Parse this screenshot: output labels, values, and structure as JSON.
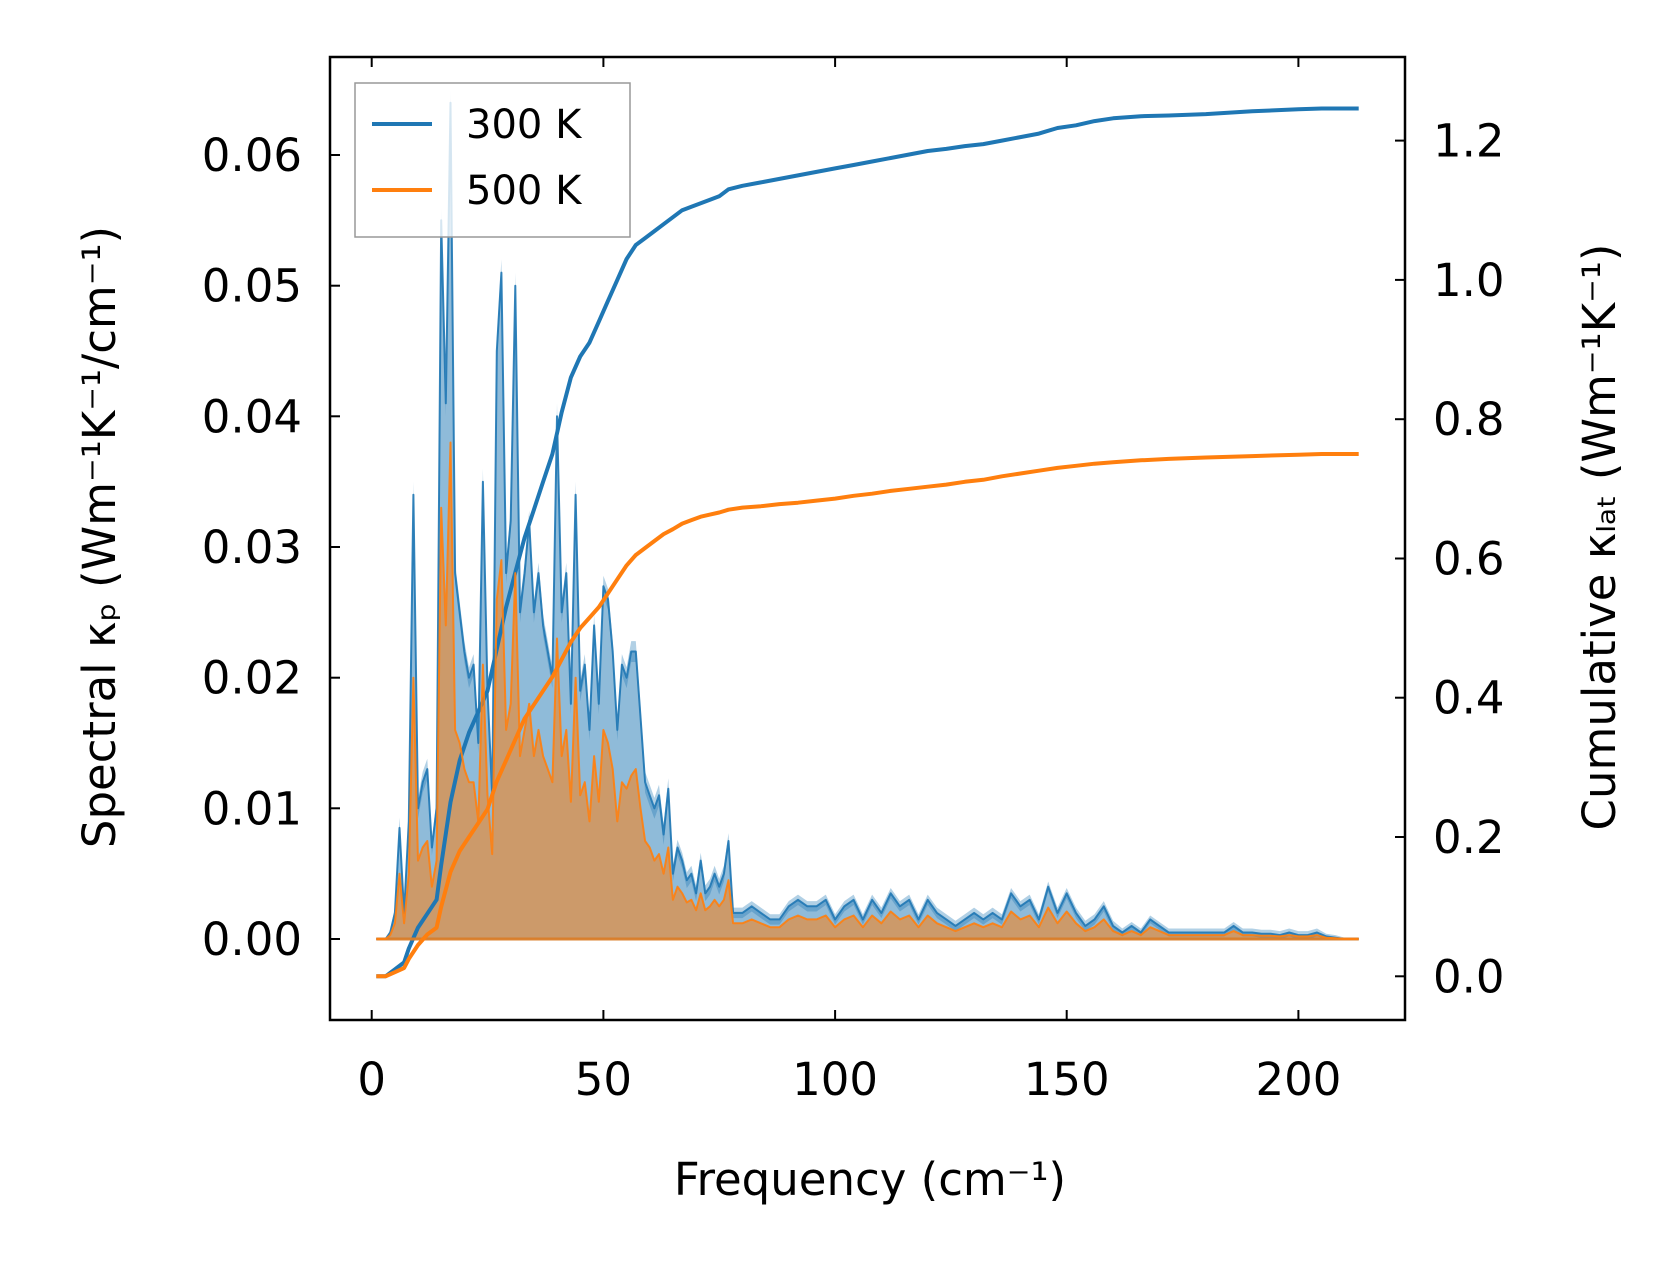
{
  "chart_data": {
    "type": "line",
    "xlabel": "Frequency (cm⁻¹)",
    "ylabel_left": "Spectral κₚ (Wm⁻¹K⁻¹/cm⁻¹)",
    "ylabel_right": "Cumulative κₗₐₜ (Wm⁻¹K⁻¹)",
    "xlim": [
      -9,
      223
    ],
    "ylim_left": [
      -0.0062,
      0.0675
    ],
    "ylim_right": [
      -0.0627,
      1.32
    ],
    "xticks": [
      0,
      50,
      100,
      150,
      200
    ],
    "yticks_left": [
      0.0,
      0.01,
      0.02,
      0.03,
      0.04,
      0.05,
      0.06
    ],
    "yticks_right": [
      0.0,
      0.2,
      0.4,
      0.6,
      0.8,
      1.0,
      1.2
    ],
    "xtick_labels": [
      "0",
      "50",
      "100",
      "150",
      "200"
    ],
    "ytick_labels_left": [
      "0.00",
      "0.01",
      "0.02",
      "0.03",
      "0.04",
      "0.05",
      "0.06"
    ],
    "ytick_labels_right": [
      "0.0",
      "0.2",
      "0.4",
      "0.6",
      "0.8",
      "1.0",
      "1.2"
    ],
    "legend": {
      "position": "top-left",
      "entries": [
        "300 K",
        "500 K"
      ]
    },
    "series": [
      {
        "name": "300 K",
        "color": "#1f77b4",
        "fill_color": "#1f77b4",
        "spectral": {
          "x": [
            1,
            3,
            4,
            5,
            6,
            7,
            8,
            9,
            10,
            11,
            12,
            13,
            14,
            15,
            16,
            17,
            18,
            19,
            20,
            21,
            22,
            23,
            24,
            25,
            26,
            27,
            28,
            29,
            30,
            31,
            32,
            33,
            34,
            35,
            36,
            37,
            38,
            39,
            40,
            41,
            42,
            43,
            44,
            45,
            46,
            47,
            48,
            49,
            50,
            51,
            52,
            53,
            54,
            55,
            56,
            57,
            58,
            59,
            60,
            61,
            62,
            63,
            64,
            65,
            66,
            67,
            68,
            69,
            70,
            71,
            72,
            73,
            74,
            75,
            76,
            77,
            78,
            80,
            82,
            84,
            86,
            88,
            90,
            92,
            94,
            96,
            98,
            100,
            102,
            104,
            106,
            108,
            110,
            112,
            114,
            116,
            118,
            120,
            122,
            124,
            126,
            128,
            130,
            132,
            134,
            136,
            138,
            140,
            142,
            144,
            146,
            148,
            150,
            152,
            154,
            156,
            158,
            160,
            162,
            164,
            166,
            168,
            170,
            172,
            174,
            176,
            178,
            180,
            182,
            184,
            186,
            188,
            190,
            192,
            194,
            196,
            198,
            200,
            202,
            204,
            206,
            208,
            210,
            213
          ],
          "y": [
            0,
            0,
            0.0005,
            0.002,
            0.0085,
            0.002,
            0.009,
            0.034,
            0.01,
            0.012,
            0.013,
            0.007,
            0.01,
            0.055,
            0.041,
            0.064,
            0.028,
            0.025,
            0.022,
            0.02,
            0.021,
            0.015,
            0.035,
            0.019,
            0.011,
            0.045,
            0.051,
            0.028,
            0.032,
            0.05,
            0.025,
            0.028,
            0.032,
            0.025,
            0.028,
            0.024,
            0.022,
            0.02,
            0.04,
            0.025,
            0.028,
            0.018,
            0.034,
            0.019,
            0.021,
            0.016,
            0.024,
            0.018,
            0.027,
            0.026,
            0.022,
            0.016,
            0.021,
            0.02,
            0.022,
            0.022,
            0.017,
            0.012,
            0.011,
            0.01,
            0.011,
            0.008,
            0.0115,
            0.005,
            0.007,
            0.006,
            0.0045,
            0.005,
            0.0035,
            0.006,
            0.0035,
            0.004,
            0.005,
            0.004,
            0.005,
            0.0075,
            0.002,
            0.002,
            0.0025,
            0.002,
            0.0015,
            0.0015,
            0.0025,
            0.003,
            0.0025,
            0.0025,
            0.003,
            0.0015,
            0.0025,
            0.003,
            0.0015,
            0.003,
            0.002,
            0.0035,
            0.0025,
            0.003,
            0.0015,
            0.003,
            0.002,
            0.0015,
            0.001,
            0.0015,
            0.002,
            0.0015,
            0.002,
            0.0015,
            0.0035,
            0.0025,
            0.003,
            0.0015,
            0.004,
            0.002,
            0.0035,
            0.002,
            0.001,
            0.0015,
            0.0025,
            0.001,
            0.0005,
            0.001,
            0.0005,
            0.0015,
            0.001,
            0.0005,
            0.0005,
            0.0005,
            0.0005,
            0.0005,
            0.0005,
            0.0005,
            0.001,
            0.0005,
            0.0005,
            0.0004,
            0.0004,
            0.0003,
            0.0005,
            0.0003,
            0.0003,
            0.0005,
            0.0002,
            0.0001,
            0,
            0
          ],
          "y_stddev": [
            0,
            0,
            0.0002,
            0.0004,
            0.0008,
            0.0004,
            0.0008,
            0.001,
            0.0008,
            0.0008,
            0.0008,
            0.0006,
            0.0008,
            0.001,
            0.001,
            0.001,
            0.0008,
            0.0008,
            0.0008,
            0.0008,
            0.0008,
            0.0008,
            0.001,
            0.0008,
            0.0008,
            0.001,
            0.001,
            0.0008,
            0.0008,
            0.001,
            0.0008,
            0.0008,
            0.0008,
            0.0008,
            0.0008,
            0.0008,
            0.0008,
            0.0008,
            0.001,
            0.0008,
            0.0008,
            0.0008,
            0.001,
            0.0008,
            0.0008,
            0.0008,
            0.0008,
            0.0008,
            0.0008,
            0.0008,
            0.0008,
            0.0008,
            0.0008,
            0.0008,
            0.0008,
            0.0008,
            0.0008,
            0.0008,
            0.0008,
            0.0008,
            0.0008,
            0.0008,
            0.0008,
            0.0006,
            0.0006,
            0.0006,
            0.0006,
            0.0006,
            0.0006,
            0.0006,
            0.0006,
            0.0006,
            0.0006,
            0.0006,
            0.0006,
            0.0006,
            0.0004,
            0.0004,
            0.0004,
            0.0004,
            0.0004,
            0.0004,
            0.0004,
            0.0004,
            0.0004,
            0.0004,
            0.0004,
            0.0004,
            0.0004,
            0.0004,
            0.0004,
            0.0004,
            0.0004,
            0.0004,
            0.0004,
            0.0004,
            0.0004,
            0.0004,
            0.0004,
            0.0004,
            0.0004,
            0.0004,
            0.0004,
            0.0004,
            0.0004,
            0.0004,
            0.0004,
            0.0004,
            0.0004,
            0.0004,
            0.0004,
            0.0004,
            0.0004,
            0.0004,
            0.0004,
            0.0004,
            0.0004,
            0.0004,
            0.0003,
            0.0003,
            0.0003,
            0.0003,
            0.0003,
            0.0003,
            0.0003,
            0.0003,
            0.0003,
            0.0003,
            0.0003,
            0.0003,
            0.0003,
            0.0003,
            0.0003,
            0.0003,
            0.0003,
            0.0003,
            0.0003,
            0.0003,
            0.0003,
            0.0003,
            0.0002,
            0.0002,
            0.0001,
            0.0001
          ]
        },
        "cumulative": {
          "x": [
            1,
            3,
            5,
            7,
            8,
            10,
            12,
            14,
            15,
            17,
            19,
            21,
            23,
            25,
            27,
            29,
            31,
            33,
            35,
            37,
            39,
            41,
            43,
            45,
            47,
            49,
            51,
            53,
            55,
            57,
            59,
            61,
            63,
            65,
            67,
            69,
            71,
            73,
            75,
            77,
            80,
            84,
            88,
            92,
            96,
            100,
            104,
            108,
            112,
            116,
            120,
            124,
            128,
            132,
            136,
            140,
            144,
            148,
            152,
            156,
            160,
            166,
            172,
            180,
            190,
            200,
            205,
            213
          ],
          "y": [
            0,
            0,
            0.01,
            0.02,
            0.04,
            0.07,
            0.09,
            0.11,
            0.16,
            0.25,
            0.31,
            0.35,
            0.38,
            0.41,
            0.47,
            0.53,
            0.58,
            0.63,
            0.67,
            0.71,
            0.75,
            0.81,
            0.86,
            0.89,
            0.91,
            0.94,
            0.97,
            1.0,
            1.03,
            1.05,
            1.06,
            1.07,
            1.08,
            1.09,
            1.1,
            1.105,
            1.11,
            1.115,
            1.12,
            1.13,
            1.135,
            1.14,
            1.145,
            1.15,
            1.155,
            1.16,
            1.165,
            1.17,
            1.175,
            1.18,
            1.185,
            1.188,
            1.192,
            1.195,
            1.2,
            1.205,
            1.21,
            1.218,
            1.222,
            1.228,
            1.232,
            1.235,
            1.236,
            1.238,
            1.242,
            1.245,
            1.246,
            1.246
          ]
        }
      },
      {
        "name": "500 K",
        "color": "#ff7f0e",
        "fill_color": "#ff7f0e",
        "spectral": {
          "x": [
            1,
            3,
            4,
            5,
            6,
            7,
            8,
            9,
            10,
            11,
            12,
            13,
            14,
            15,
            16,
            17,
            18,
            19,
            20,
            21,
            22,
            23,
            24,
            25,
            26,
            27,
            28,
            29,
            30,
            31,
            32,
            33,
            34,
            35,
            36,
            37,
            38,
            39,
            40,
            41,
            42,
            43,
            44,
            45,
            46,
            47,
            48,
            49,
            50,
            51,
            52,
            53,
            54,
            55,
            56,
            57,
            58,
            59,
            60,
            61,
            62,
            63,
            64,
            65,
            66,
            67,
            68,
            69,
            70,
            71,
            72,
            73,
            74,
            75,
            76,
            77,
            78,
            80,
            82,
            84,
            86,
            88,
            90,
            92,
            94,
            96,
            98,
            100,
            102,
            104,
            106,
            108,
            110,
            112,
            114,
            116,
            118,
            120,
            122,
            124,
            126,
            128,
            130,
            132,
            134,
            136,
            138,
            140,
            142,
            144,
            146,
            148,
            150,
            152,
            154,
            156,
            158,
            160,
            162,
            164,
            166,
            168,
            170,
            172,
            174,
            176,
            178,
            180,
            182,
            184,
            186,
            188,
            190,
            192,
            194,
            196,
            198,
            200,
            202,
            204,
            206,
            208,
            210,
            213
          ],
          "y": [
            0,
            0,
            0.0003,
            0.0012,
            0.005,
            0.0012,
            0.005,
            0.02,
            0.006,
            0.007,
            0.0075,
            0.004,
            0.006,
            0.033,
            0.024,
            0.038,
            0.016,
            0.015,
            0.013,
            0.012,
            0.012,
            0.009,
            0.021,
            0.011,
            0.0065,
            0.026,
            0.029,
            0.016,
            0.018,
            0.028,
            0.014,
            0.016,
            0.018,
            0.014,
            0.016,
            0.014,
            0.013,
            0.012,
            0.023,
            0.014,
            0.016,
            0.0105,
            0.02,
            0.011,
            0.012,
            0.009,
            0.014,
            0.0105,
            0.016,
            0.015,
            0.013,
            0.009,
            0.012,
            0.0115,
            0.0125,
            0.013,
            0.01,
            0.0075,
            0.007,
            0.006,
            0.0065,
            0.005,
            0.007,
            0.003,
            0.004,
            0.0035,
            0.0028,
            0.003,
            0.0022,
            0.0035,
            0.0022,
            0.0025,
            0.003,
            0.0025,
            0.003,
            0.0045,
            0.0012,
            0.0012,
            0.0015,
            0.0012,
            0.0009,
            0.0009,
            0.0015,
            0.0018,
            0.0015,
            0.0015,
            0.0018,
            0.0009,
            0.0015,
            0.0018,
            0.0009,
            0.0018,
            0.0012,
            0.0021,
            0.0015,
            0.0018,
            0.0009,
            0.0018,
            0.0012,
            0.0009,
            0.0006,
            0.0009,
            0.0012,
            0.0009,
            0.0012,
            0.0009,
            0.0021,
            0.0015,
            0.0018,
            0.0009,
            0.0024,
            0.0012,
            0.0021,
            0.0012,
            0.0006,
            0.0009,
            0.0015,
            0.0006,
            0.0003,
            0.0006,
            0.0003,
            0.0009,
            0.0006,
            0.0003,
            0.0003,
            0.0003,
            0.0003,
            0.0003,
            0.0003,
            0.0003,
            0.0006,
            0.0003,
            0.0003,
            0.00025,
            0.00025,
            0.0002,
            0.0003,
            0.0002,
            0.0002,
            0.0003,
            0.0001,
            5e-05,
            0,
            0
          ]
        },
        "cumulative": {
          "x": [
            1,
            3,
            5,
            7,
            8,
            10,
            12,
            14,
            15,
            17,
            19,
            21,
            23,
            25,
            27,
            29,
            31,
            33,
            35,
            37,
            39,
            41,
            43,
            45,
            47,
            49,
            51,
            53,
            55,
            57,
            59,
            61,
            63,
            65,
            67,
            69,
            71,
            73,
            75,
            77,
            80,
            84,
            88,
            92,
            96,
            100,
            104,
            108,
            112,
            116,
            120,
            124,
            128,
            132,
            136,
            140,
            144,
            148,
            152,
            156,
            160,
            166,
            172,
            180,
            190,
            200,
            205,
            213
          ],
          "y": [
            0,
            0,
            0.006,
            0.012,
            0.025,
            0.045,
            0.06,
            0.07,
            0.1,
            0.15,
            0.18,
            0.2,
            0.22,
            0.24,
            0.28,
            0.31,
            0.34,
            0.37,
            0.39,
            0.41,
            0.43,
            0.455,
            0.48,
            0.5,
            0.515,
            0.53,
            0.55,
            0.57,
            0.59,
            0.605,
            0.615,
            0.625,
            0.635,
            0.642,
            0.65,
            0.655,
            0.66,
            0.663,
            0.666,
            0.67,
            0.673,
            0.675,
            0.678,
            0.68,
            0.683,
            0.686,
            0.69,
            0.693,
            0.697,
            0.7,
            0.703,
            0.706,
            0.71,
            0.713,
            0.718,
            0.722,
            0.726,
            0.73,
            0.733,
            0.736,
            0.738,
            0.741,
            0.743,
            0.745,
            0.747,
            0.749,
            0.75,
            0.75
          ]
        }
      }
    ]
  }
}
